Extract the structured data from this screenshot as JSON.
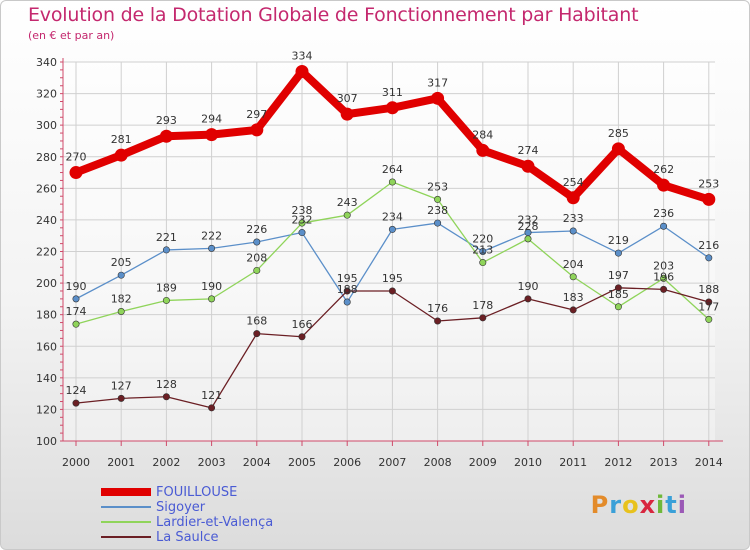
{
  "title": "Evolution de la Dotation Globale de Fonctionnement par Habitant",
  "subtitle": "(en € et par an)",
  "logo": {
    "letters": [
      "P",
      "r",
      "o",
      "x",
      "i",
      "t",
      "i"
    ],
    "colors": [
      "#e38b2a",
      "#3aa0d8",
      "#e8c21d",
      "#d8263f",
      "#6fb83a",
      "#3aa0d8",
      "#9b59b6"
    ]
  },
  "chart_data": {
    "type": "line",
    "title": "Evolution de la Dotation Globale de Fonctionnement par Habitant",
    "ylabel": "(en € et par an)",
    "xlabel": "",
    "x": [
      "2000",
      "2001",
      "2002",
      "2003",
      "2004",
      "2005",
      "2006",
      "2007",
      "2008",
      "2009",
      "2010",
      "2011",
      "2012",
      "2013",
      "2014"
    ],
    "ylim": [
      100,
      340
    ],
    "yticks": [
      "100",
      "120",
      "140",
      "160",
      "180",
      "200",
      "220",
      "240",
      "260",
      "280",
      "300",
      "320",
      "340"
    ],
    "grid": true,
    "legend_position": "bottom-left",
    "series": [
      {
        "name": "FOUILLOUSE",
        "color": "#e00000",
        "values": [
          270,
          281,
          293,
          294,
          297,
          334,
          307,
          311,
          317,
          284,
          274,
          254,
          285,
          262,
          253
        ],
        "labels": [
          "270",
          "281",
          "293",
          "294",
          "297",
          "334",
          "307",
          "311",
          "317",
          "284",
          "274",
          "254",
          "285",
          "262",
          "253"
        ]
      },
      {
        "name": "Sigoyer",
        "color": "#5b8fc9",
        "values": [
          190,
          205,
          221,
          222,
          226,
          232,
          188,
          234,
          238,
          220,
          232,
          233,
          219,
          236,
          216
        ],
        "labels": [
          "190",
          "205",
          "221",
          "222",
          "226",
          "232",
          "188",
          "234",
          "238",
          "220",
          "232",
          "233",
          "219",
          "236",
          "216"
        ]
      },
      {
        "name": "Lardier-et-Valença",
        "color": "#8fd45a",
        "values": [
          174,
          182,
          189,
          190,
          208,
          238,
          243,
          264,
          253,
          213,
          228,
          204,
          185,
          203,
          177
        ],
        "labels": [
          "174",
          "182",
          "189",
          "190",
          "208",
          "238",
          "243",
          "264",
          "253",
          "213",
          "228",
          "204",
          "185",
          "203",
          "177"
        ]
      },
      {
        "name": "La Saulce",
        "color": "#6b1f24",
        "values": [
          124,
          127,
          128,
          121,
          168,
          166,
          195,
          195,
          176,
          178,
          190,
          183,
          197,
          196,
          188
        ],
        "labels": [
          "124",
          "127",
          "128",
          "121",
          "168",
          "166",
          "195",
          "195",
          "176",
          "178",
          "190",
          "183",
          "197",
          "196",
          "188"
        ]
      }
    ]
  }
}
